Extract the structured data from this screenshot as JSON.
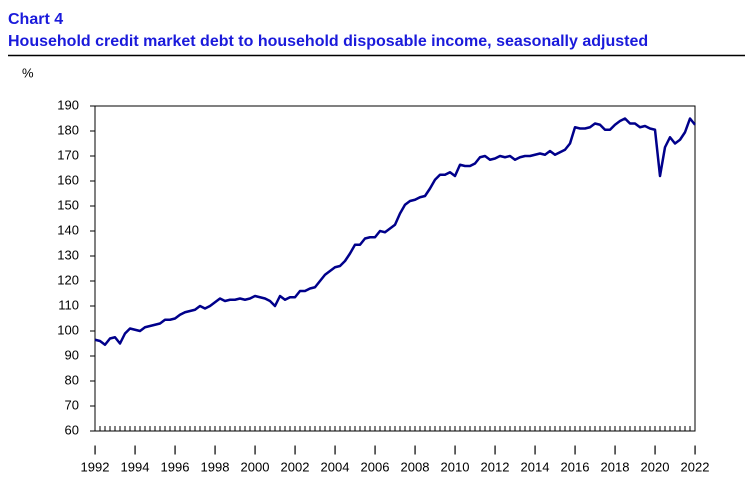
{
  "chart_data": {
    "type": "line",
    "title": "Chart 4",
    "subtitle": "Household credit market debt to household disposable income, seasonally adjusted",
    "ylabel": "%",
    "x_tick_marker": "I",
    "categories": [
      "1992",
      null,
      null,
      null,
      null,
      null,
      null,
      null,
      "1994",
      null,
      null,
      null,
      null,
      null,
      null,
      null,
      "1996",
      null,
      null,
      null,
      null,
      null,
      null,
      null,
      "1998",
      null,
      null,
      null,
      null,
      null,
      null,
      null,
      "2000",
      null,
      null,
      null,
      null,
      null,
      null,
      null,
      "2002",
      null,
      null,
      null,
      null,
      null,
      null,
      null,
      "2004",
      null,
      null,
      null,
      null,
      null,
      null,
      null,
      "2006",
      null,
      null,
      null,
      null,
      null,
      null,
      null,
      "2008",
      null,
      null,
      null,
      null,
      null,
      null,
      null,
      "2010",
      null,
      null,
      null,
      null,
      null,
      null,
      null,
      "2012",
      null,
      null,
      null,
      null,
      null,
      null,
      null,
      "2014",
      null,
      null,
      null,
      null,
      null,
      null,
      null,
      "2016",
      null,
      null,
      null,
      null,
      null,
      null,
      null,
      "2018",
      null,
      null,
      null,
      null,
      null,
      null,
      null,
      "2020",
      null,
      null,
      null,
      null,
      null,
      null,
      null,
      "2022"
    ],
    "series": [
      {
        "color": "#00008b",
        "values": [
          96.5,
          96,
          94.5,
          97,
          97.5,
          95,
          99,
          101,
          100.5,
          100,
          101.5,
          102,
          102.5,
          103,
          104.5,
          104.5,
          105,
          106.5,
          107.5,
          108,
          108.5,
          110,
          109,
          110,
          111.5,
          113,
          112,
          112.5,
          112.5,
          113,
          112.5,
          113,
          114,
          113.5,
          113,
          112,
          110,
          114,
          112.5,
          113.5,
          113.5,
          116,
          116,
          117,
          117.5,
          120,
          122.5,
          124,
          125.5,
          126,
          128,
          131,
          134.5,
          134.5,
          137,
          137.5,
          137.5,
          140,
          139.5,
          141,
          142.5,
          147,
          150.5,
          152,
          152.5,
          153.5,
          154,
          157,
          160.5,
          162.5,
          162.5,
          163.5,
          162,
          166.5,
          166,
          166,
          167,
          169.5,
          170,
          168.5,
          169,
          170,
          169.5,
          170,
          168.5,
          169.5,
          170,
          170,
          170.5,
          171,
          170.5,
          172,
          170.5,
          171.5,
          172.5,
          175,
          181.5,
          181,
          181,
          181.5,
          183,
          182.5,
          180.5,
          180.5,
          182.5,
          184,
          185,
          183,
          183,
          181.5,
          182,
          181,
          180.5,
          162,
          173.5,
          177.5,
          175,
          176.5,
          179.5,
          185,
          182.5
        ]
      }
    ],
    "ylim": [
      60,
      190
    ],
    "yticks": [
      60,
      70,
      80,
      90,
      100,
      110,
      120,
      130,
      140,
      150,
      160,
      170,
      180,
      190
    ],
    "grid": false
  }
}
